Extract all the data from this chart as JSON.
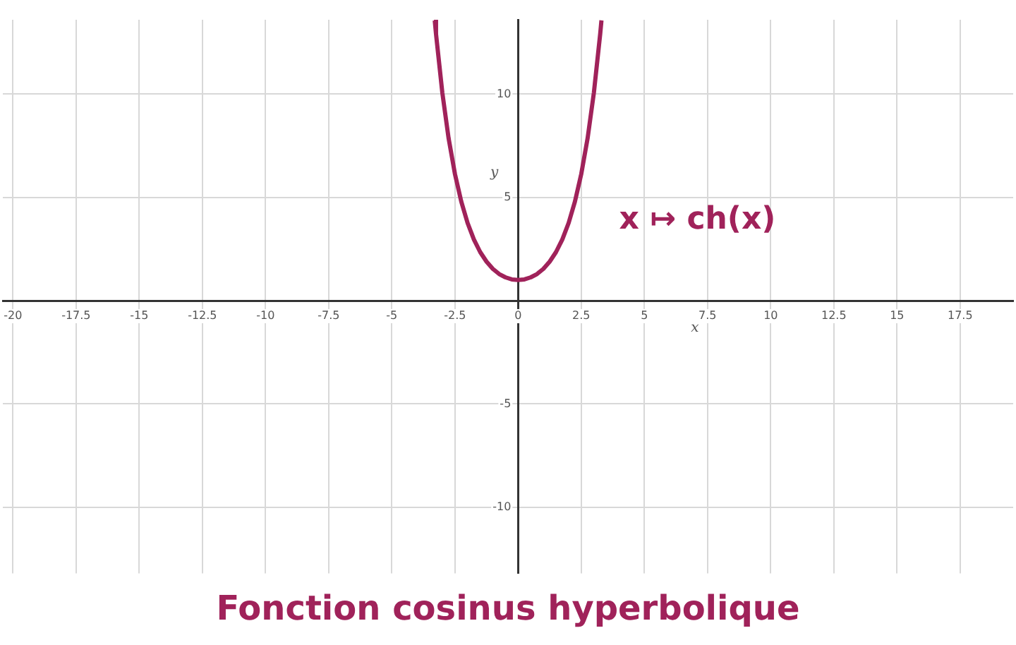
{
  "chart_data": {
    "type": "line",
    "title": "Fonction cosinus hyperbolique",
    "xlabel": "x",
    "ylabel": "y",
    "annotations": [
      "x ↦ ch(x)"
    ],
    "series": [
      {
        "color": "#a0225a",
        "x": [
          -3.3,
          -3.25,
          -3,
          -2.75,
          -2.5,
          -2.25,
          -2,
          -1.75,
          -1.5,
          -1.25,
          -1,
          -0.75,
          -0.5,
          -0.25,
          0,
          0.25,
          0.5,
          0.75,
          1,
          1.25,
          1.5,
          1.75,
          2,
          2.25,
          2.5,
          2.75,
          3,
          3.25,
          3.3
        ],
        "values": [
          13.57,
          12.91,
          10.07,
          7.85,
          6.13,
          4.8,
          3.76,
          2.96,
          2.35,
          1.89,
          1.54,
          1.29,
          1.13,
          1.03,
          1,
          1.03,
          1.13,
          1.29,
          1.54,
          1.89,
          2.35,
          2.96,
          3.76,
          4.8,
          6.13,
          7.85,
          10.07,
          12.91,
          13.57
        ]
      }
    ],
    "xlim": [
      -20.4,
      19.6
    ],
    "ylim": [
      -13.2,
      13.6
    ],
    "xticks": [
      -20,
      -17.5,
      -15,
      -12.5,
      -10,
      -7.5,
      -5,
      -2.5,
      0,
      2.5,
      5,
      7.5,
      10,
      12.5,
      15,
      17.5
    ],
    "yticks": [
      -10,
      -5,
      {
        "value": 0,
        "label": null
      },
      5,
      10
    ],
    "grid": true,
    "marker": "none",
    "line_style": "solid",
    "legend": false
  }
}
